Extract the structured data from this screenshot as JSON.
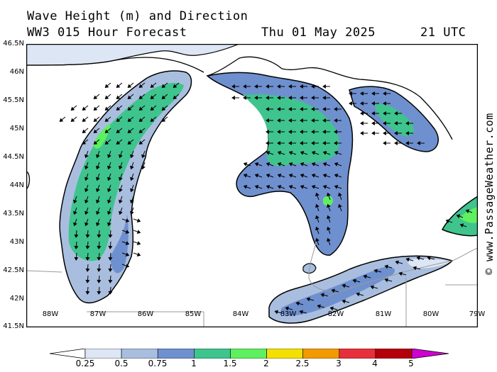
{
  "header": {
    "title": "Wave Height (m) and Direction",
    "model": "WW3 015 Hour Forecast",
    "date": "Thu 01 May 2025",
    "time": "21 UTC"
  },
  "credit": "© www.PassageWeather.com",
  "axes": {
    "latitudes": [
      "46.5N",
      "46N",
      "45.5N",
      "45N",
      "44.5N",
      "44N",
      "43.5N",
      "43N",
      "42.5N",
      "42N",
      "41.5N"
    ],
    "longitudes": [
      "88W",
      "87W",
      "86W",
      "85W",
      "84W",
      "83W",
      "82W",
      "81W",
      "80W",
      "79W"
    ]
  },
  "colorbar": {
    "labels": [
      "0.25",
      "0.5",
      "0.75",
      "1",
      "1.5",
      "2",
      "2.5",
      "3",
      "4",
      "5"
    ],
    "colors": [
      "#dde6f4",
      "#a9bedf",
      "#6f90cf",
      "#3fc48e",
      "#5ef060",
      "#f4e000",
      "#f29a00",
      "#e8303c",
      "#b4000a",
      "#c000c0"
    ],
    "left_arrow_color": "#ffffff",
    "right_arrow_color": "#d000d0"
  },
  "colors": {
    "land": "#ffffff",
    "coast": "#000000",
    "border": "#9a9a9a",
    "arrow": "#000000"
  }
}
